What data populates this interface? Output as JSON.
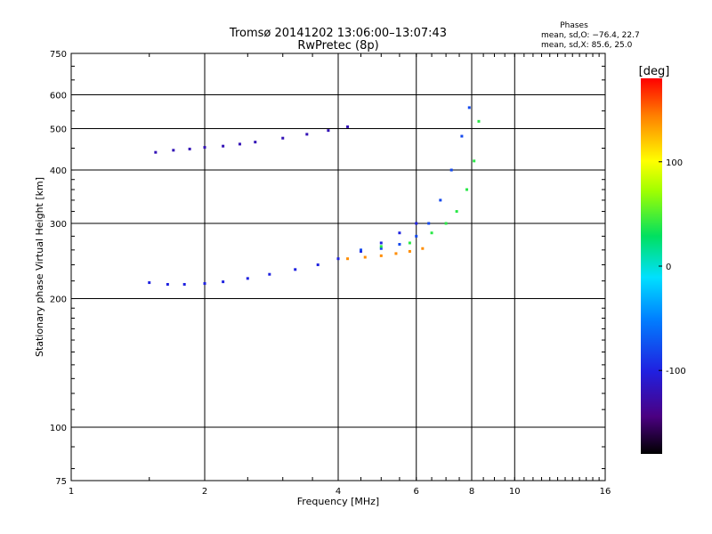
{
  "chart_data": {
    "type": "scatter",
    "title": "Tromsø 20141202 13:06:00–13:07:43",
    "subtitle": "RwPretec (8p)",
    "xlabel": "Frequency [MHz]",
    "ylabel": "Stationary phase Virtual Height [km]",
    "x_scale": "log",
    "y_scale": "log",
    "xlim": [
      1,
      16
    ],
    "ylim": [
      75,
      750
    ],
    "x_ticks": [
      1,
      2,
      4,
      6,
      8,
      10,
      16
    ],
    "y_ticks": [
      75,
      100,
      200,
      300,
      400,
      500,
      600,
      750
    ],
    "grid": true,
    "colorbar": {
      "label": "[deg]",
      "range": [
        -180,
        180
      ],
      "ticks": [
        100,
        0,
        -100
      ]
    },
    "phase_stats": {
      "heading": "Phases",
      "line_o": "mean, sd,O: −76.4, 22.7",
      "line_x": "mean, sd,X:  85.6, 25.0"
    },
    "series": [
      {
        "phase": -100,
        "x": [
          1.5,
          1.65,
          1.8,
          2.0,
          2.2,
          2.5,
          2.8,
          3.2,
          3.6,
          4.0,
          4.5,
          5.0,
          5.5,
          6.0
        ],
        "y": [
          218,
          216,
          216,
          217,
          219,
          223,
          228,
          234,
          240,
          248,
          258,
          270,
          285,
          300
        ]
      },
      {
        "phase": -120,
        "x": [
          1.55,
          1.7,
          1.85,
          2.0,
          2.2,
          2.4,
          2.6,
          3.0,
          3.4,
          3.8,
          4.2
        ],
        "y": [
          440,
          445,
          448,
          452,
          455,
          460,
          465,
          475,
          485,
          495,
          505
        ]
      },
      {
        "phase": -80,
        "x": [
          4.5,
          5.0,
          5.5,
          6.0,
          6.4,
          6.8,
          7.2,
          7.6,
          7.9
        ],
        "y": [
          260,
          262,
          268,
          280,
          300,
          340,
          400,
          480,
          560
        ]
      },
      {
        "phase": 40,
        "x": [
          5.0,
          5.8,
          6.5,
          7.0,
          7.4,
          7.8,
          8.1,
          8.3
        ],
        "y": [
          265,
          270,
          285,
          300,
          320,
          360,
          420,
          520
        ]
      },
      {
        "phase": 140,
        "x": [
          4.2,
          4.6,
          5.0,
          5.4,
          5.8,
          6.2
        ],
        "y": [
          248,
          250,
          252,
          255,
          258,
          262
        ]
      }
    ]
  }
}
